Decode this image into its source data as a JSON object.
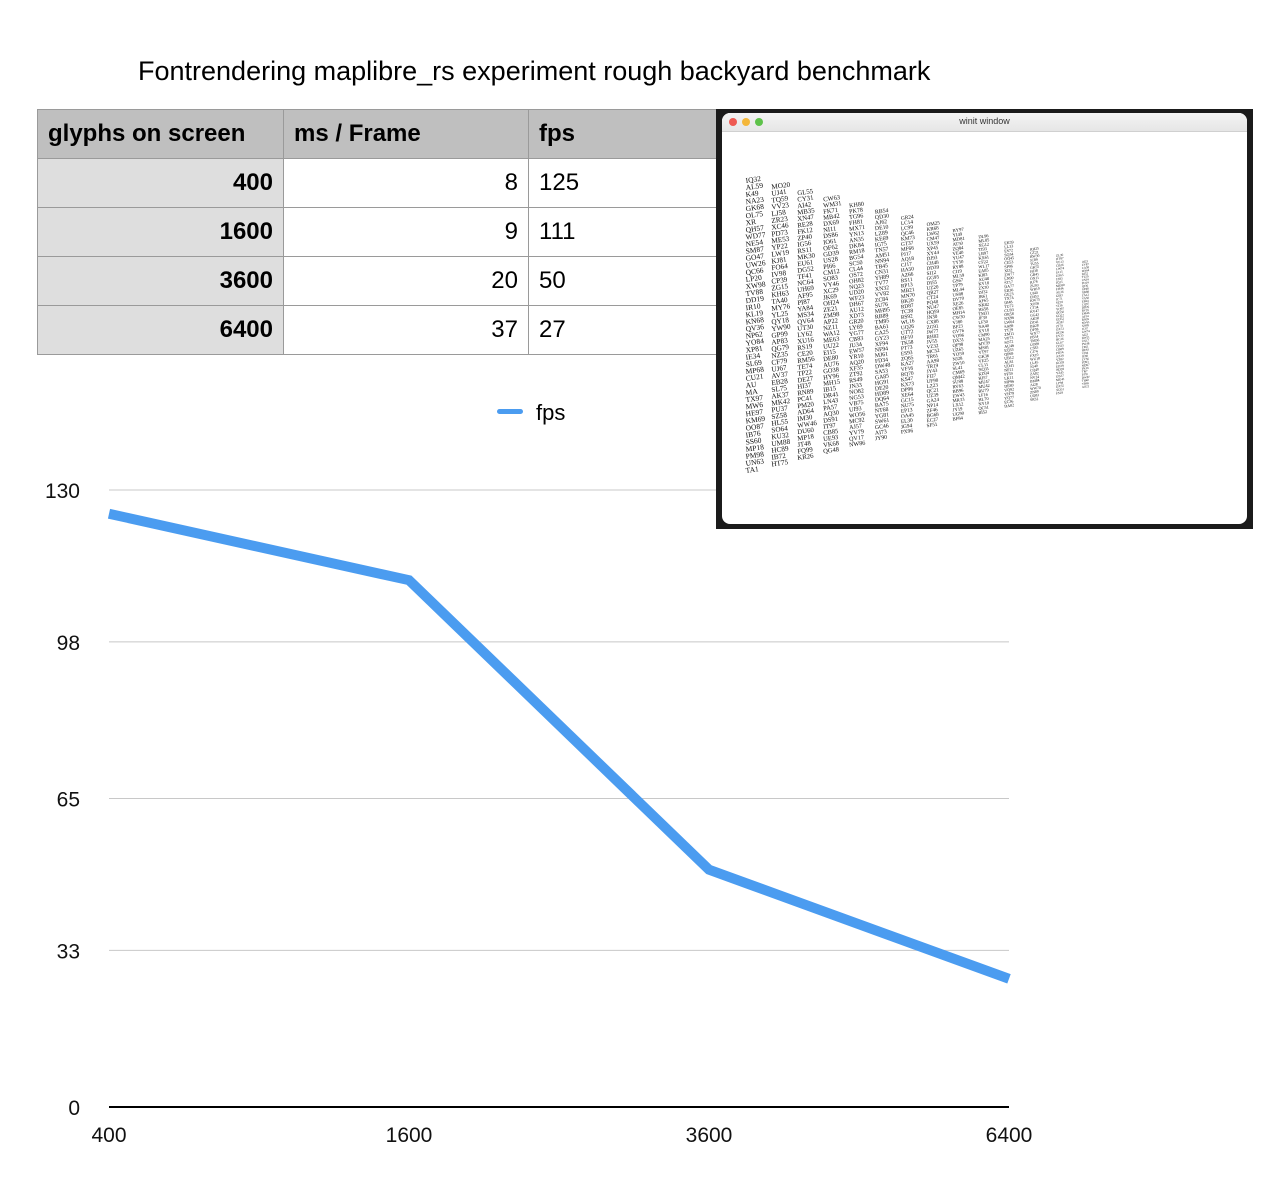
{
  "title": "Fontrendering maplibre_rs experiment rough backyard benchmark",
  "table": {
    "headers": [
      "glyphs on screen",
      "ms / Frame",
      "fps"
    ],
    "rows": [
      [
        "400",
        "8",
        "125"
      ],
      [
        "1600",
        "9",
        "111"
      ],
      [
        "3600",
        "20",
        "50"
      ],
      [
        "6400",
        "37",
        "27"
      ]
    ]
  },
  "screenshot": {
    "window_title": "winit window",
    "dots": [
      "#ee5a52",
      "#f4b73a",
      "#5ec24a"
    ],
    "glyph_sample": [
      "IQ32",
      "AL59",
      "K49",
      "NA23",
      "GK68",
      "OL75",
      "XR",
      "QH57",
      "WD77",
      "NE54",
      "SM87",
      "GO47",
      "UW26",
      "QC66",
      "LP20",
      "XW98",
      "TV88",
      "DD19",
      "IR10",
      "KL19",
      "KN68",
      "QV36",
      "NP62",
      "YO84",
      "XP81",
      "IE34",
      "SL69",
      "MP68",
      "CU21",
      "AU",
      "MA",
      "TX97",
      "MW6",
      "HE97",
      "KM69",
      "OO87",
      "IB76",
      "SS60",
      "MP18",
      "PM98",
      "UN63",
      "TA1",
      "KF1",
      "QV90",
      "YI52",
      "SG43",
      "UP43"
    ]
  },
  "chart_data": {
    "type": "line",
    "categories": [
      "400",
      "1600",
      "3600",
      "6400"
    ],
    "series": [
      {
        "name": "fps",
        "values": [
          125,
          111,
          50,
          27
        ],
        "color": "#4b9cf0"
      }
    ],
    "ylim": [
      0,
      130
    ],
    "yticks": [
      "130",
      "98",
      "65",
      "33",
      "0"
    ],
    "ytick_values": [
      130,
      98,
      65,
      33,
      0
    ],
    "grid": true,
    "legend": "top-center"
  }
}
